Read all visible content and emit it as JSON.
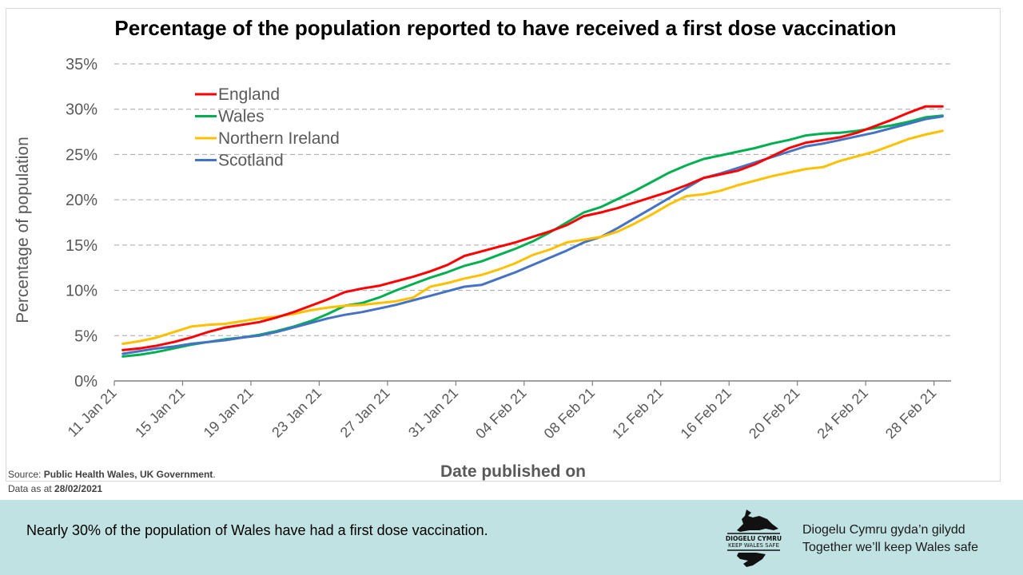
{
  "chart_data": {
    "type": "line",
    "title": "Percentage of the population reported to have received a first dose vaccination",
    "xlabel": "Date published on",
    "ylabel": "Percentage of population",
    "ylim": [
      0,
      35
    ],
    "yticks": [
      "0%",
      "5%",
      "10%",
      "15%",
      "20%",
      "25%",
      "30%",
      "35%"
    ],
    "xtick_labels": [
      "11 Jan 21",
      "15 Jan 21",
      "19 Jan 21",
      "23 Jan 21",
      "27 Jan 21",
      "31 Jan 21",
      "04 Feb 21",
      "08 Feb 21",
      "12 Feb 21",
      "16 Feb 21",
      "20 Feb 21",
      "24 Feb 21",
      "28 Feb 21"
    ],
    "x_days": 49,
    "x_start": "11 Jan 21",
    "x_end": "28 Feb 21",
    "grid": true,
    "legend_position": "top-left",
    "series": [
      {
        "name": "England",
        "color": "#ff0000",
        "values": [
          3.4,
          3.6,
          3.9,
          4.3,
          4.8,
          5.4,
          5.9,
          6.2,
          6.5,
          7.0,
          7.6,
          8.3,
          9.0,
          9.8,
          10.2,
          10.5,
          11.0,
          11.5,
          12.1,
          12.8,
          13.8,
          14.3,
          14.8,
          15.3,
          15.9,
          16.5,
          17.2,
          18.2,
          18.6,
          19.1,
          19.7,
          20.3,
          20.9,
          21.6,
          22.4,
          22.8,
          23.2,
          23.9,
          24.8,
          25.7,
          26.3,
          26.6,
          26.9,
          27.4,
          28.1,
          28.8,
          29.6,
          30.3,
          30.3
        ]
      },
      {
        "name": "Wales",
        "color": "#00b050",
        "values": [
          2.7,
          2.9,
          3.2,
          3.6,
          4.0,
          4.3,
          4.6,
          4.8,
          5.1,
          5.5,
          6.0,
          6.6,
          7.4,
          8.3,
          8.6,
          9.2,
          10.0,
          10.7,
          11.4,
          12.0,
          12.7,
          13.2,
          13.9,
          14.6,
          15.4,
          16.4,
          17.5,
          18.6,
          19.2,
          20.1,
          21.0,
          22.0,
          23.0,
          23.8,
          24.5,
          24.9,
          25.3,
          25.7,
          26.2,
          26.6,
          27.1,
          27.3,
          27.4,
          27.6,
          27.9,
          28.2,
          28.6,
          29.1,
          29.3
        ]
      },
      {
        "name": "Northern Ireland",
        "color": "#ffc000",
        "values": [
          4.1,
          4.4,
          4.8,
          5.4,
          6.0,
          6.2,
          6.3,
          6.6,
          6.9,
          7.1,
          7.4,
          7.8,
          8.1,
          8.3,
          8.4,
          8.6,
          8.8,
          9.2,
          10.4,
          10.8,
          11.3,
          11.7,
          12.3,
          13.0,
          13.9,
          14.5,
          15.3,
          15.6,
          15.9,
          16.5,
          17.4,
          18.4,
          19.5,
          20.4,
          20.6,
          21.0,
          21.6,
          22.1,
          22.6,
          23.0,
          23.4,
          23.6,
          24.3,
          24.8,
          25.3,
          26.0,
          26.7,
          27.2,
          27.6
        ]
      },
      {
        "name": "Scotland",
        "color": "#4472c4",
        "values": [
          3.0,
          3.3,
          3.6,
          3.8,
          4.1,
          4.3,
          4.5,
          4.8,
          5.0,
          5.4,
          5.9,
          6.4,
          6.9,
          7.3,
          7.6,
          8.0,
          8.4,
          8.9,
          9.4,
          9.9,
          10.4,
          10.6,
          11.3,
          12.0,
          12.8,
          13.6,
          14.4,
          15.3,
          15.9,
          16.9,
          18.0,
          19.1,
          20.2,
          21.3,
          22.4,
          22.9,
          23.5,
          24.1,
          24.7,
          25.3,
          25.9,
          26.2,
          26.6,
          27.0,
          27.4,
          27.9,
          28.4,
          28.9,
          29.2
        ]
      }
    ]
  },
  "source": {
    "prefix": "Source: ",
    "names": "Public Health Wales, UK Government",
    "suffix": "."
  },
  "data_as_at": {
    "prefix": "Data as at ",
    "date": "28/02/2021"
  },
  "footer": {
    "message": "Nearly 30% of the population of Wales have had a first dose vaccination.",
    "logo_line1": "DIOGELU CYMRU",
    "logo_line2": "KEEP WALES SAFE",
    "tagline_welsh": "Diogelu Cymru gyda’n gilydd",
    "tagline_english": "Together we’ll keep Wales safe"
  }
}
